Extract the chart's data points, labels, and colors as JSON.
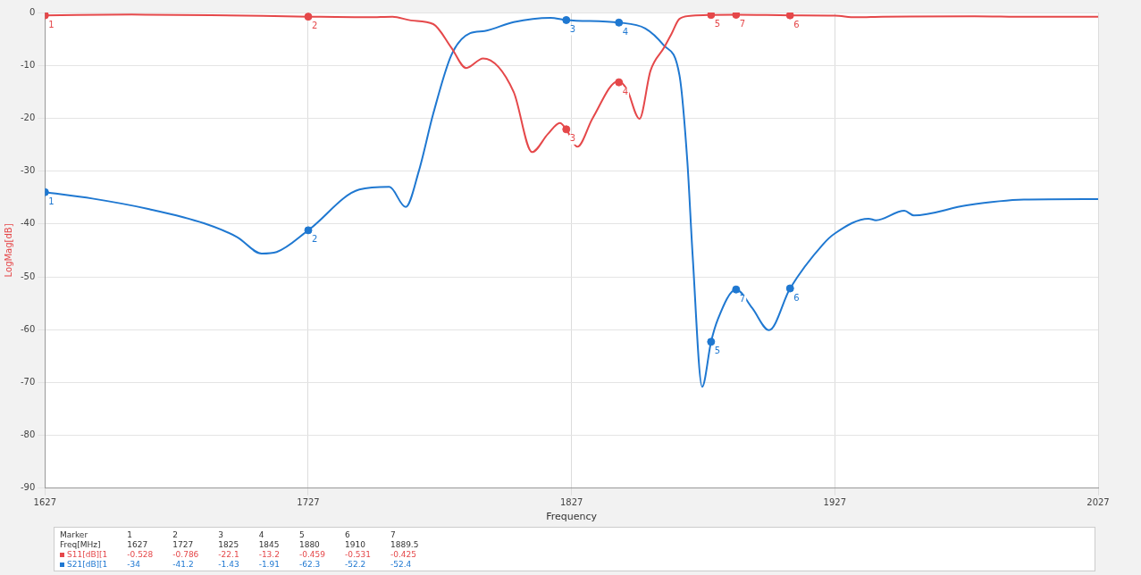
{
  "chart_data": {
    "type": "line",
    "xlabel": "Frequency",
    "ylabel": "LogMag[dB]",
    "xlim": [
      1627,
      2027
    ],
    "xticks": [
      1627,
      1727,
      1827,
      1927,
      2027
    ],
    "ylim": [
      -90,
      0
    ],
    "yticks": [
      -90,
      -80,
      -70,
      -60,
      -50,
      -40,
      -30,
      -20,
      -10,
      0
    ],
    "grid": true,
    "legend": "bottom",
    "marker": "none",
    "line_style": "solid",
    "series": [
      {
        "color": "#e5484a",
        "x": [
          1627,
          1660,
          1690,
          1727,
          1750,
          1759,
          1766,
          1774.5,
          1781.4,
          1787,
          1793.4,
          1805,
          1812,
          1818,
          1822.6,
          1825,
          1829.2,
          1835,
          1844.7,
          1848,
          1852.8,
          1857,
          1862.2,
          1865,
          1868,
          1873,
          1880,
          1889.5,
          1910,
          1927,
          1935,
          1945,
          1980,
          2000,
          2027
        ],
        "values": [
          -0.528,
          -0.4,
          -0.5,
          -0.786,
          -0.9,
          -0.8,
          -1.5,
          -2.2,
          -6.7,
          -10.5,
          -8.7,
          -15,
          -26.4,
          -23,
          -20.9,
          -22.1,
          -25.4,
          -20,
          -13,
          -14.5,
          -20.1,
          -11,
          -6.6,
          -4,
          -1.2,
          -0.6,
          -0.459,
          -0.425,
          -0.531,
          -0.6,
          -0.9,
          -0.8,
          -0.7,
          -0.8,
          -0.8
        ]
      },
      {
        "color": "#1f78d1",
        "x": [
          1627,
          1645,
          1666.6,
          1687.6,
          1700,
          1709.3,
          1715,
          1727,
          1746.4,
          1757.8,
          1764,
          1769,
          1774.5,
          1781.4,
          1788.5,
          1794,
          1805,
          1819,
          1825,
          1845,
          1855,
          1862,
          1868,
          1871,
          1873,
          1876.6,
          1880,
          1882.6,
          1889.5,
          1895.6,
          1902,
          1910,
          1922.6,
          1927,
          1939.8,
          1942.6,
          1953.4,
          1957,
          1977,
          1998.8,
          2027
        ],
        "values": [
          -34,
          -35.2,
          -37.2,
          -39.9,
          -42.5,
          -45.6,
          -45.3,
          -41.2,
          -33.5,
          -33,
          -36.8,
          -30,
          -19.1,
          -8,
          -3.9,
          -3.5,
          -1.8,
          -1,
          -1.43,
          -1.91,
          -3,
          -6.2,
          -11.9,
          -28.3,
          -46,
          -70.8,
          -62.3,
          -58,
          -52.4,
          -55.9,
          -60.1,
          -52.2,
          -43.8,
          -41.8,
          -39,
          -39.3,
          -37.5,
          -38.4,
          -36.5,
          -35.4,
          -35.3
        ]
      },
      {
        "type": "scatter",
        "name": "S11[dB][1",
        "color": "#e5484a",
        "marker": "circle",
        "x": [
          1627,
          1727,
          1825,
          1845,
          1880,
          1910,
          1889.5
        ],
        "values": [
          -0.528,
          -0.786,
          -22.1,
          -13.2,
          -0.459,
          -0.531,
          -0.425
        ]
      },
      {
        "type": "scatter",
        "name": "S21[dB][1",
        "color": "#1f78d1",
        "marker": "circle",
        "x": [
          1627,
          1727,
          1825,
          1845,
          1880,
          1910,
          1889.5
        ],
        "values": [
          -34,
          -41.2,
          -1.43,
          -1.91,
          -62.3,
          -52.2,
          -52.4
        ]
      }
    ],
    "annotations": [
      "Marker",
      "Freq[MHz]",
      "1627",
      "1727",
      "1825",
      "1845",
      "1880",
      "1910",
      "1889.5",
      "-0.528",
      "-0.786",
      "-22.1",
      "-13.2",
      "-0.459",
      "-0.531",
      "-0.425",
      "-34",
      "-41.2",
      "-1.43",
      "-1.91",
      "-62.3",
      "-52.2",
      "-52.4",
      {
        "text": "1",
        "x": 1627,
        "y": -0.528
      },
      {
        "text": "2",
        "x": 1727,
        "y": -0.786
      },
      {
        "text": "3",
        "x": 1825,
        "y": -22.1
      },
      {
        "text": "4",
        "x": 1845,
        "y": -13.2
      },
      {
        "text": "5",
        "x": 1880,
        "y": -0.459
      },
      {
        "text": "6",
        "x": 1910,
        "y": -0.531
      },
      {
        "text": "7",
        "x": 1889.5,
        "y": -0.425
      },
      {
        "text": "1",
        "x": 1627,
        "y": -34
      },
      {
        "text": "2",
        "x": 1727,
        "y": -41.2
      },
      {
        "text": "3",
        "x": 1825,
        "y": -1.43
      },
      {
        "text": "4",
        "x": 1845,
        "y": -1.91
      },
      {
        "text": "5",
        "x": 1880,
        "y": -62.3
      },
      {
        "text": "6",
        "x": 1910,
        "y": -52.2
      },
      {
        "text": "7",
        "x": 1889.5,
        "y": -52.4
      }
    ]
  }
}
